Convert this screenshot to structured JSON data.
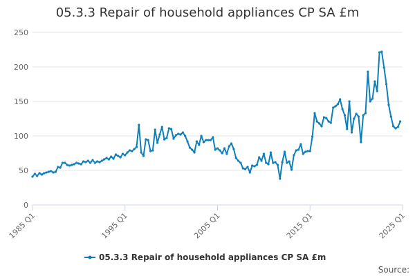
{
  "colors": {
    "series": "#0e7fb8",
    "grid": "#e6e6e6",
    "axis": "#ccd6eb",
    "text": "#333333",
    "muted": "#666666"
  },
  "chart_data": {
    "type": "line",
    "title": "05.3.3 Repair of household appliances CP SA £m",
    "xlabel": "",
    "ylabel": "",
    "x_start": 1985.0,
    "x_end": 2025.0,
    "ylim": [
      0,
      250
    ],
    "y_ticks": [
      0,
      50,
      100,
      150,
      200,
      250
    ],
    "x_ticks": [
      {
        "value": 1985.0,
        "label": "1985 Q1"
      },
      {
        "value": 1995.0,
        "label": "1995 Q1"
      },
      {
        "value": 2005.0,
        "label": "2005 Q1"
      },
      {
        "value": 2015.0,
        "label": "2015 Q1"
      },
      {
        "value": 2025.0,
        "label": "2025 Q1"
      }
    ],
    "grid": true,
    "legend": {
      "position": "bottom-center",
      "label": "05.3.3 Repair of household appliances CP SA £m"
    },
    "source_label": "Source:",
    "series": [
      {
        "name": "05.3.3 Repair of household appliances CP SA £m",
        "color": "#0e7fb8",
        "points": [
          [
            1985.0,
            41
          ],
          [
            1985.25,
            45
          ],
          [
            1985.5,
            42
          ],
          [
            1985.75,
            46
          ],
          [
            1986.0,
            44
          ],
          [
            1986.25,
            46
          ],
          [
            1986.5,
            47
          ],
          [
            1986.75,
            48
          ],
          [
            1987.0,
            49
          ],
          [
            1987.25,
            47
          ],
          [
            1987.5,
            48
          ],
          [
            1987.75,
            55
          ],
          [
            1988.0,
            54
          ],
          [
            1988.25,
            61
          ],
          [
            1988.5,
            61
          ],
          [
            1988.75,
            58
          ],
          [
            1989.0,
            57
          ],
          [
            1989.25,
            58
          ],
          [
            1989.5,
            59
          ],
          [
            1989.75,
            61
          ],
          [
            1990.0,
            60
          ],
          [
            1990.25,
            59
          ],
          [
            1990.5,
            63
          ],
          [
            1990.75,
            62
          ],
          [
            1991.0,
            64
          ],
          [
            1991.25,
            61
          ],
          [
            1991.5,
            65
          ],
          [
            1991.75,
            61
          ],
          [
            1992.0,
            63
          ],
          [
            1992.25,
            62
          ],
          [
            1992.5,
            64
          ],
          [
            1992.75,
            66
          ],
          [
            1993.0,
            68
          ],
          [
            1993.25,
            66
          ],
          [
            1993.5,
            70
          ],
          [
            1993.75,
            67
          ],
          [
            1994.0,
            73
          ],
          [
            1994.25,
            71
          ],
          [
            1994.5,
            69
          ],
          [
            1994.75,
            74
          ],
          [
            1995.0,
            72
          ],
          [
            1995.25,
            76
          ],
          [
            1995.5,
            79
          ],
          [
            1995.75,
            78
          ],
          [
            1996.0,
            81
          ],
          [
            1996.25,
            84
          ],
          [
            1996.5,
            116
          ],
          [
            1996.75,
            76
          ],
          [
            1997.0,
            71
          ],
          [
            1997.25,
            95
          ],
          [
            1997.5,
            94
          ],
          [
            1997.75,
            78
          ],
          [
            1998.0,
            79
          ],
          [
            1998.25,
            109
          ],
          [
            1998.5,
            90
          ],
          [
            1998.75,
            102
          ],
          [
            1999.0,
            113
          ],
          [
            1999.25,
            95
          ],
          [
            1999.5,
            97
          ],
          [
            1999.75,
            111
          ],
          [
            2000.0,
            110
          ],
          [
            2000.25,
            96
          ],
          [
            2000.5,
            101
          ],
          [
            2000.75,
            103
          ],
          [
            2001.0,
            102
          ],
          [
            2001.25,
            105
          ],
          [
            2001.5,
            100
          ],
          [
            2001.75,
            92
          ],
          [
            2002.0,
            83
          ],
          [
            2002.25,
            80
          ],
          [
            2002.5,
            76
          ],
          [
            2002.75,
            92
          ],
          [
            2003.0,
            87
          ],
          [
            2003.25,
            100
          ],
          [
            2003.5,
            91
          ],
          [
            2003.75,
            94
          ],
          [
            2004.0,
            94
          ],
          [
            2004.25,
            94
          ],
          [
            2004.5,
            98
          ],
          [
            2004.75,
            80
          ],
          [
            2005.0,
            82
          ],
          [
            2005.25,
            79
          ],
          [
            2005.5,
            75
          ],
          [
            2005.75,
            82
          ],
          [
            2006.0,
            74
          ],
          [
            2006.25,
            85
          ],
          [
            2006.5,
            89
          ],
          [
            2006.75,
            81
          ],
          [
            2007.0,
            68
          ],
          [
            2007.25,
            64
          ],
          [
            2007.5,
            61
          ],
          [
            2007.75,
            53
          ],
          [
            2008.0,
            52
          ],
          [
            2008.25,
            55
          ],
          [
            2008.5,
            47
          ],
          [
            2008.75,
            57
          ],
          [
            2009.0,
            56
          ],
          [
            2009.25,
            58
          ],
          [
            2009.5,
            69
          ],
          [
            2009.75,
            64
          ],
          [
            2010.0,
            74
          ],
          [
            2010.25,
            61
          ],
          [
            2010.5,
            59
          ],
          [
            2010.75,
            76
          ],
          [
            2011.0,
            61
          ],
          [
            2011.25,
            62
          ],
          [
            2011.5,
            58
          ],
          [
            2011.75,
            38
          ],
          [
            2012.0,
            62
          ],
          [
            2012.25,
            77
          ],
          [
            2012.5,
            61
          ],
          [
            2012.75,
            63
          ],
          [
            2013.0,
            51
          ],
          [
            2013.25,
            72
          ],
          [
            2013.5,
            79
          ],
          [
            2013.75,
            80
          ],
          [
            2014.0,
            88
          ],
          [
            2014.25,
            74
          ],
          [
            2014.5,
            77
          ],
          [
            2014.75,
            78
          ],
          [
            2015.0,
            78
          ],
          [
            2015.25,
            99
          ],
          [
            2015.5,
            133
          ],
          [
            2015.75,
            121
          ],
          [
            2016.0,
            118
          ],
          [
            2016.25,
            114
          ],
          [
            2016.5,
            127
          ],
          [
            2016.75,
            126
          ],
          [
            2017.0,
            121
          ],
          [
            2017.25,
            119
          ],
          [
            2017.5,
            141
          ],
          [
            2017.75,
            143
          ],
          [
            2018.0,
            146
          ],
          [
            2018.25,
            153
          ],
          [
            2018.5,
            139
          ],
          [
            2018.75,
            130
          ],
          [
            2019.0,
            110
          ],
          [
            2019.25,
            150
          ],
          [
            2019.5,
            105
          ],
          [
            2019.75,
            125
          ],
          [
            2020.0,
            132
          ],
          [
            2020.25,
            128
          ],
          [
            2020.5,
            91
          ],
          [
            2020.75,
            130
          ],
          [
            2021.0,
            133
          ],
          [
            2021.25,
            193
          ],
          [
            2021.5,
            150
          ],
          [
            2021.75,
            154
          ],
          [
            2022.0,
            179
          ],
          [
            2022.25,
            165
          ],
          [
            2022.5,
            221
          ],
          [
            2022.75,
            222
          ],
          [
            2023.0,
            199
          ],
          [
            2023.25,
            175
          ],
          [
            2023.5,
            145
          ],
          [
            2023.75,
            128
          ],
          [
            2024.0,
            114
          ],
          [
            2024.25,
            111
          ],
          [
            2024.5,
            113
          ],
          [
            2024.75,
            121
          ]
        ]
      }
    ]
  }
}
